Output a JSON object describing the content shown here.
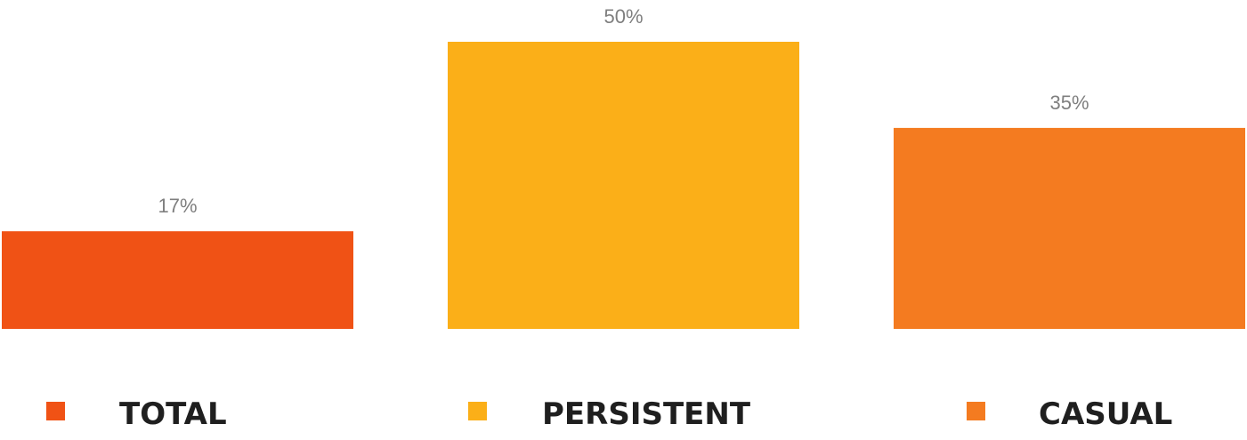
{
  "chart_data": {
    "type": "bar",
    "categories": [
      "TOTAL",
      "PERSISTENT",
      "CASUAL"
    ],
    "values": [
      17,
      50,
      35
    ],
    "value_labels": [
      "17%",
      "50%",
      "35%"
    ],
    "colors": [
      "#F05215",
      "#FBAF18",
      "#F47B20"
    ],
    "ylim": [
      0,
      50
    ],
    "title": "",
    "xlabel": "",
    "ylabel": "",
    "grid": false,
    "legend": "bottom"
  }
}
